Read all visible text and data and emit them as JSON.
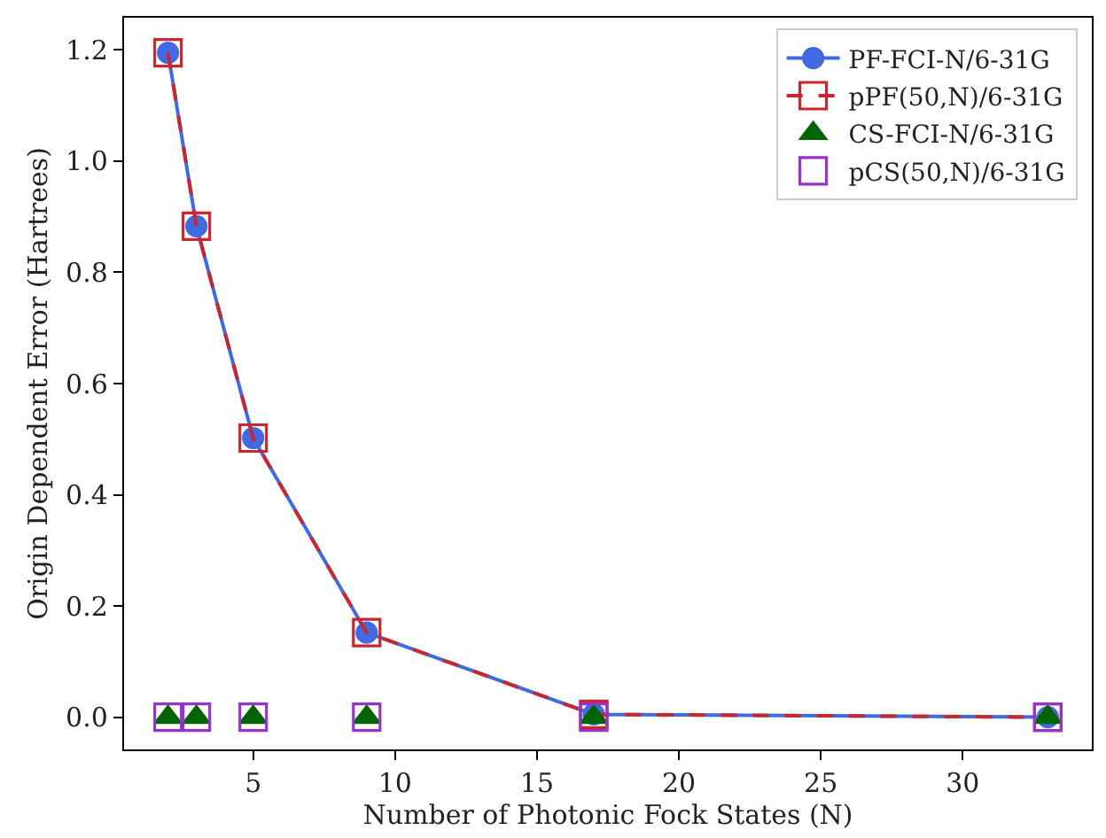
{
  "chart_data": {
    "type": "line",
    "xlabel": "Number of Photonic Fock States (N)",
    "ylabel": "Origin Dependent Error (Hartrees)",
    "x": [
      2,
      3,
      5,
      9,
      17,
      33
    ],
    "series": [
      {
        "name": "PF-FCI-N/6-31G",
        "color": "#4169e1",
        "marker": "circle",
        "line_style": "solid",
        "values": [
          1.195,
          0.883,
          0.502,
          0.152,
          0.005,
          0.0
        ]
      },
      {
        "name": "pPF(50,N)/6-31G",
        "color": "#c8282d",
        "marker": "square",
        "line_style": "dashed",
        "values": [
          1.195,
          0.883,
          0.502,
          0.152,
          0.005,
          0.0
        ]
      },
      {
        "name": "CS-FCI-N/6-31G",
        "color": "#006400",
        "type": "scatter",
        "marker": "triangle",
        "values": [
          0.0,
          0.0,
          0.0,
          0.0,
          0.0,
          0.0
        ]
      },
      {
        "name": "pCS(50,N)/6-31G",
        "color": "#9932cc",
        "type": "scatter",
        "marker": "square",
        "values": [
          0.0,
          0.0,
          0.0,
          0.0,
          0.0,
          0.0
        ]
      }
    ],
    "xlim": [
      0.45,
      34.55
    ],
    "xticks": [
      5,
      10,
      15,
      20,
      25,
      30
    ],
    "ylim": [
      -0.058,
      1.258
    ],
    "yticks": [
      {
        "value": 0,
        "label": "0.0"
      },
      {
        "value": 0.2,
        "label": "0.2"
      },
      {
        "value": 0.4,
        "label": "0.4"
      },
      {
        "value": 0.6,
        "label": "0.6"
      },
      {
        "value": 0.8,
        "label": "0.8"
      },
      {
        "value": 1.0,
        "label": "1.0"
      },
      {
        "value": 1.2,
        "label": "1.2"
      }
    ],
    "legend": "top right"
  }
}
